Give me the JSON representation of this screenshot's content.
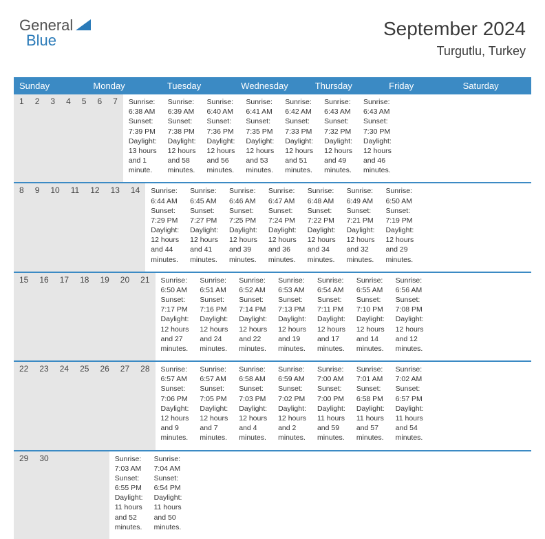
{
  "logo": {
    "part1": "General",
    "part2": "Blue"
  },
  "header": {
    "month": "September 2024",
    "location": "Turgutlu, Turkey"
  },
  "colors": {
    "header_bg": "#3b8ac4",
    "daynum_bg": "#e6e6e6",
    "rule": "#3b8ac4"
  },
  "weekdays": [
    "Sunday",
    "Monday",
    "Tuesday",
    "Wednesday",
    "Thursday",
    "Friday",
    "Saturday"
  ],
  "weeks": [
    {
      "nums": [
        "1",
        "2",
        "3",
        "4",
        "5",
        "6",
        "7"
      ],
      "cells": [
        {
          "sr": "Sunrise: 6:38 AM",
          "ss": "Sunset: 7:39 PM",
          "dl": "Daylight: 13 hours and 1 minute."
        },
        {
          "sr": "Sunrise: 6:39 AM",
          "ss": "Sunset: 7:38 PM",
          "dl": "Daylight: 12 hours and 58 minutes."
        },
        {
          "sr": "Sunrise: 6:40 AM",
          "ss": "Sunset: 7:36 PM",
          "dl": "Daylight: 12 hours and 56 minutes."
        },
        {
          "sr": "Sunrise: 6:41 AM",
          "ss": "Sunset: 7:35 PM",
          "dl": "Daylight: 12 hours and 53 minutes."
        },
        {
          "sr": "Sunrise: 6:42 AM",
          "ss": "Sunset: 7:33 PM",
          "dl": "Daylight: 12 hours and 51 minutes."
        },
        {
          "sr": "Sunrise: 6:43 AM",
          "ss": "Sunset: 7:32 PM",
          "dl": "Daylight: 12 hours and 49 minutes."
        },
        {
          "sr": "Sunrise: 6:43 AM",
          "ss": "Sunset: 7:30 PM",
          "dl": "Daylight: 12 hours and 46 minutes."
        }
      ]
    },
    {
      "nums": [
        "8",
        "9",
        "10",
        "11",
        "12",
        "13",
        "14"
      ],
      "cells": [
        {
          "sr": "Sunrise: 6:44 AM",
          "ss": "Sunset: 7:29 PM",
          "dl": "Daylight: 12 hours and 44 minutes."
        },
        {
          "sr": "Sunrise: 6:45 AM",
          "ss": "Sunset: 7:27 PM",
          "dl": "Daylight: 12 hours and 41 minutes."
        },
        {
          "sr": "Sunrise: 6:46 AM",
          "ss": "Sunset: 7:25 PM",
          "dl": "Daylight: 12 hours and 39 minutes."
        },
        {
          "sr": "Sunrise: 6:47 AM",
          "ss": "Sunset: 7:24 PM",
          "dl": "Daylight: 12 hours and 36 minutes."
        },
        {
          "sr": "Sunrise: 6:48 AM",
          "ss": "Sunset: 7:22 PM",
          "dl": "Daylight: 12 hours and 34 minutes."
        },
        {
          "sr": "Sunrise: 6:49 AM",
          "ss": "Sunset: 7:21 PM",
          "dl": "Daylight: 12 hours and 32 minutes."
        },
        {
          "sr": "Sunrise: 6:50 AM",
          "ss": "Sunset: 7:19 PM",
          "dl": "Daylight: 12 hours and 29 minutes."
        }
      ]
    },
    {
      "nums": [
        "15",
        "16",
        "17",
        "18",
        "19",
        "20",
        "21"
      ],
      "cells": [
        {
          "sr": "Sunrise: 6:50 AM",
          "ss": "Sunset: 7:17 PM",
          "dl": "Daylight: 12 hours and 27 minutes."
        },
        {
          "sr": "Sunrise: 6:51 AM",
          "ss": "Sunset: 7:16 PM",
          "dl": "Daylight: 12 hours and 24 minutes."
        },
        {
          "sr": "Sunrise: 6:52 AM",
          "ss": "Sunset: 7:14 PM",
          "dl": "Daylight: 12 hours and 22 minutes."
        },
        {
          "sr": "Sunrise: 6:53 AM",
          "ss": "Sunset: 7:13 PM",
          "dl": "Daylight: 12 hours and 19 minutes."
        },
        {
          "sr": "Sunrise: 6:54 AM",
          "ss": "Sunset: 7:11 PM",
          "dl": "Daylight: 12 hours and 17 minutes."
        },
        {
          "sr": "Sunrise: 6:55 AM",
          "ss": "Sunset: 7:10 PM",
          "dl": "Daylight: 12 hours and 14 minutes."
        },
        {
          "sr": "Sunrise: 6:56 AM",
          "ss": "Sunset: 7:08 PM",
          "dl": "Daylight: 12 hours and 12 minutes."
        }
      ]
    },
    {
      "nums": [
        "22",
        "23",
        "24",
        "25",
        "26",
        "27",
        "28"
      ],
      "cells": [
        {
          "sr": "Sunrise: 6:57 AM",
          "ss": "Sunset: 7:06 PM",
          "dl": "Daylight: 12 hours and 9 minutes."
        },
        {
          "sr": "Sunrise: 6:57 AM",
          "ss": "Sunset: 7:05 PM",
          "dl": "Daylight: 12 hours and 7 minutes."
        },
        {
          "sr": "Sunrise: 6:58 AM",
          "ss": "Sunset: 7:03 PM",
          "dl": "Daylight: 12 hours and 4 minutes."
        },
        {
          "sr": "Sunrise: 6:59 AM",
          "ss": "Sunset: 7:02 PM",
          "dl": "Daylight: 12 hours and 2 minutes."
        },
        {
          "sr": "Sunrise: 7:00 AM",
          "ss": "Sunset: 7:00 PM",
          "dl": "Daylight: 11 hours and 59 minutes."
        },
        {
          "sr": "Sunrise: 7:01 AM",
          "ss": "Sunset: 6:58 PM",
          "dl": "Daylight: 11 hours and 57 minutes."
        },
        {
          "sr": "Sunrise: 7:02 AM",
          "ss": "Sunset: 6:57 PM",
          "dl": "Daylight: 11 hours and 54 minutes."
        }
      ]
    },
    {
      "nums": [
        "29",
        "30",
        "",
        "",
        "",
        "",
        ""
      ],
      "cells": [
        {
          "sr": "Sunrise: 7:03 AM",
          "ss": "Sunset: 6:55 PM",
          "dl": "Daylight: 11 hours and 52 minutes."
        },
        {
          "sr": "Sunrise: 7:04 AM",
          "ss": "Sunset: 6:54 PM",
          "dl": "Daylight: 11 hours and 50 minutes."
        },
        {
          "sr": "",
          "ss": "",
          "dl": ""
        },
        {
          "sr": "",
          "ss": "",
          "dl": ""
        },
        {
          "sr": "",
          "ss": "",
          "dl": ""
        },
        {
          "sr": "",
          "ss": "",
          "dl": ""
        },
        {
          "sr": "",
          "ss": "",
          "dl": ""
        }
      ]
    }
  ]
}
